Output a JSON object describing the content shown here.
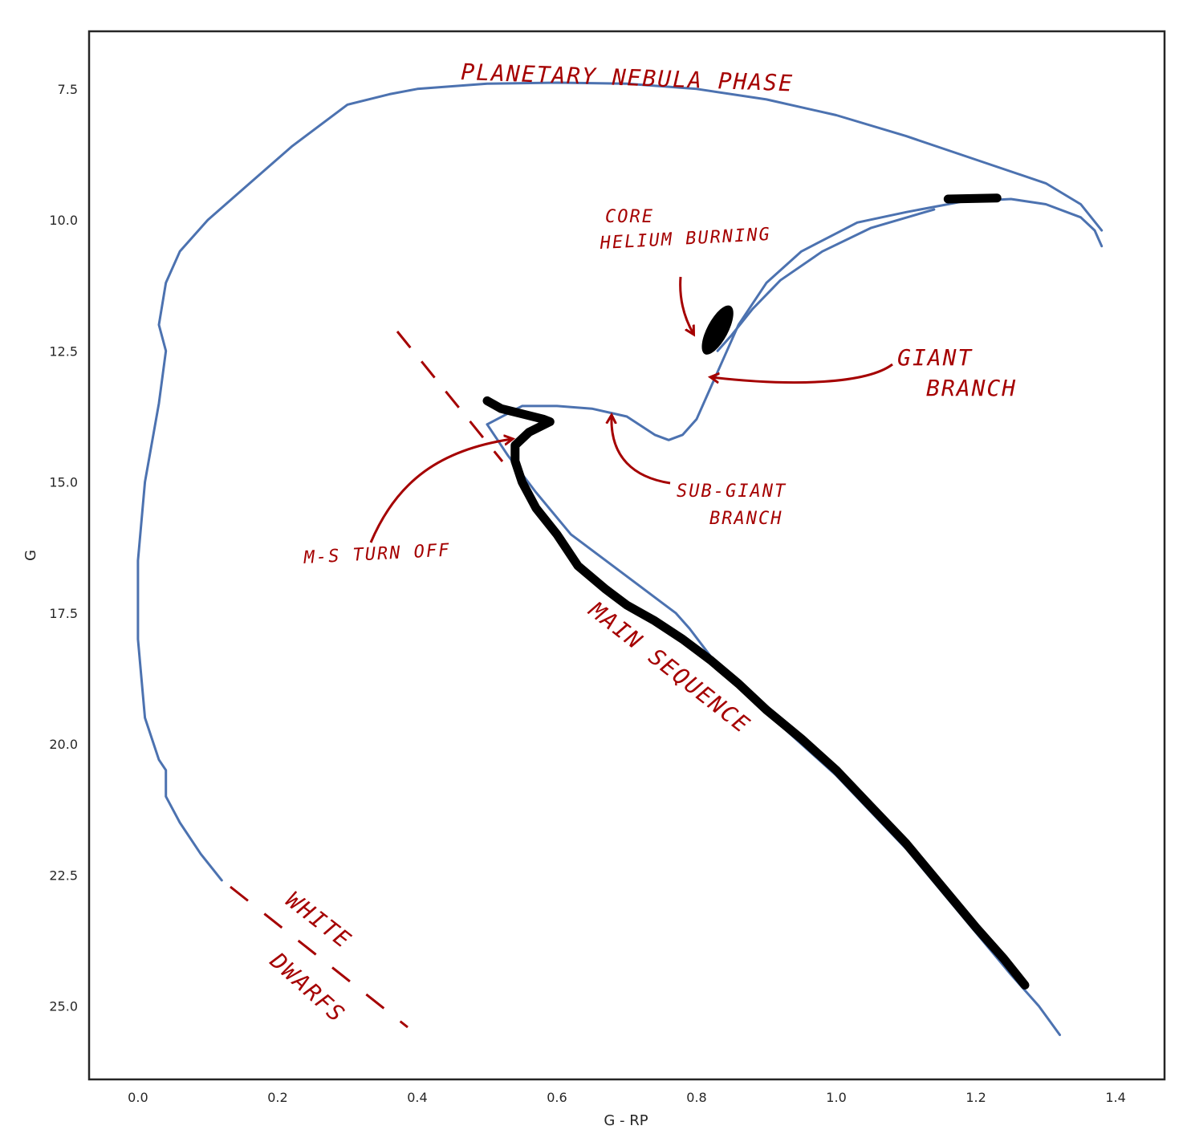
{
  "chart_data": {
    "type": "line",
    "xlabel": "G - RP",
    "ylabel": "G",
    "xlim": [
      -0.07,
      1.47
    ],
    "ylim": [
      26.4,
      6.4
    ],
    "y_inverted": true,
    "grid": false,
    "xticks": [
      0.0,
      0.2,
      0.4,
      0.6,
      0.8,
      1.0,
      1.2,
      1.4
    ],
    "yticks": [
      7.5,
      10.0,
      12.5,
      15.0,
      17.5,
      20.0,
      22.5,
      25.0
    ],
    "colors": {
      "track": "#4c72b0",
      "stars": "#000000",
      "annotation": "#a50000",
      "frame": "#262626"
    },
    "series": [
      {
        "kind": "isochrone-track",
        "x": [
          1.32,
          1.29,
          1.25,
          1.2,
          1.15,
          1.1,
          1.05,
          1.0,
          0.95,
          0.9,
          0.86,
          0.83,
          0.81,
          0.79,
          0.77,
          0.75,
          0.72,
          0.68,
          0.62,
          0.57,
          0.53,
          0.5
        ],
        "y": [
          25.55,
          25.0,
          24.4,
          23.6,
          22.8,
          22.0,
          21.3,
          20.6,
          20.0,
          19.4,
          18.9,
          18.5,
          18.15,
          17.8,
          17.5,
          17.3,
          17.0,
          16.6,
          16.0,
          15.2,
          14.5,
          13.9
        ]
      },
      {
        "kind": "isochrone-track",
        "x": [
          0.5,
          0.55,
          0.6,
          0.65,
          0.7,
          0.74,
          0.76,
          0.78,
          0.8,
          0.82,
          0.86,
          0.9,
          0.95,
          1.03,
          1.1,
          1.18,
          1.25,
          1.3,
          1.35,
          1.37,
          1.38
        ],
        "y": [
          13.9,
          13.55,
          13.55,
          13.6,
          13.75,
          14.1,
          14.2,
          14.1,
          13.8,
          13.2,
          12.0,
          11.2,
          10.6,
          10.05,
          9.85,
          9.65,
          9.6,
          9.7,
          9.95,
          10.2,
          10.5
        ]
      },
      {
        "kind": "isochrone-track",
        "x": [
          1.14,
          1.05,
          0.98,
          0.92,
          0.88,
          0.85,
          0.83
        ],
        "y": [
          9.8,
          10.15,
          10.6,
          11.15,
          11.7,
          12.2,
          12.5
        ]
      },
      {
        "kind": "isochrone-track",
        "x": [
          1.38,
          1.35,
          1.3,
          1.2,
          1.1,
          1.0,
          0.9,
          0.8,
          0.7,
          0.6,
          0.5,
          0.4,
          0.36,
          0.3,
          0.22,
          0.16,
          0.1,
          0.06,
          0.04,
          0.03,
          0.04,
          0.03,
          0.01,
          0.0,
          0.0,
          0.01,
          0.03,
          0.04,
          0.04,
          0.06,
          0.09,
          0.12
        ],
        "y": [
          10.2,
          9.7,
          9.3,
          8.85,
          8.4,
          8.0,
          7.7,
          7.5,
          7.4,
          7.38,
          7.4,
          7.5,
          7.6,
          7.8,
          8.6,
          9.3,
          10.0,
          10.6,
          11.2,
          12.0,
          12.5,
          13.5,
          15.0,
          16.5,
          18.0,
          19.5,
          20.3,
          20.5,
          21.0,
          21.5,
          22.1,
          22.6
        ]
      },
      {
        "kind": "observed-stars",
        "x": [
          1.27,
          1.24,
          1.2,
          1.15,
          1.1,
          1.05,
          1.0,
          0.95,
          0.9,
          0.86,
          0.82,
          0.78,
          0.74,
          0.7,
          0.67,
          0.63,
          0.6,
          0.57,
          0.55,
          0.54,
          0.54,
          0.56,
          0.59,
          0.58,
          0.55,
          0.52,
          0.5
        ],
        "y": [
          24.6,
          24.1,
          23.5,
          22.7,
          21.9,
          21.2,
          20.5,
          19.9,
          19.35,
          18.85,
          18.4,
          18.0,
          17.65,
          17.35,
          17.05,
          16.6,
          16.0,
          15.5,
          15.0,
          14.6,
          14.3,
          14.05,
          13.85,
          13.8,
          13.7,
          13.6,
          13.45
        ]
      },
      {
        "kind": "observed-stars",
        "x": [
          1.16,
          1.23
        ],
        "y": [
          9.6,
          9.58
        ]
      }
    ],
    "blob": {
      "x": 0.83,
      "y": 12.1,
      "label": "CORE HELIUM BURNING"
    },
    "annotations": [
      {
        "text": "PLANETARY NEBULA PHASE"
      },
      {
        "text": "CORE"
      },
      {
        "text": "HELIUM BURNING"
      },
      {
        "text": "GIANT"
      },
      {
        "text": "BRANCH"
      },
      {
        "text": "SUB-GIANT"
      },
      {
        "text": "BRANCH"
      },
      {
        "text": "M-S TURN OFF"
      },
      {
        "text": "MAIN SEQUENCE"
      },
      {
        "text": "WHITE"
      },
      {
        "text": "DWARFS"
      }
    ]
  }
}
